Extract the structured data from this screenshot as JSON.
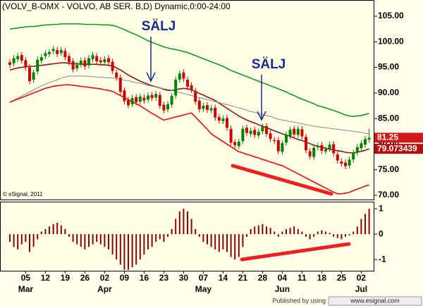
{
  "title": "(VOLV_B-OMX - VOLVO, AB SER. B,D) Dynamic,0:00-24:00",
  "copyright": "© eSignal, 2011",
  "footer": {
    "text": "Published by using",
    "site": "www.esignal.com"
  },
  "chart_data": [
    {
      "type": "candlestick",
      "categories": [
        null,
        null,
        null,
        null,
        "05",
        null,
        null,
        null,
        null,
        "12",
        null,
        null,
        null,
        null,
        "19",
        null,
        null,
        null,
        null,
        "26",
        null,
        null,
        null,
        null,
        "02",
        null,
        null,
        null,
        null,
        "09",
        null,
        null,
        null,
        null,
        "16",
        null,
        null,
        null,
        null,
        "23",
        null,
        null,
        null,
        null,
        "30",
        null,
        null,
        null,
        null,
        "07",
        null,
        null,
        null,
        null,
        "14",
        null,
        null,
        null,
        null,
        "21",
        null,
        null,
        null,
        null,
        "28",
        null,
        null,
        null,
        null,
        "04",
        null,
        null,
        null,
        null,
        "11",
        null,
        null,
        null,
        null,
        "18",
        null,
        null,
        null,
        null,
        "25",
        null,
        null,
        null,
        null,
        "02",
        null,
        null
      ],
      "month_categories": [
        null,
        null,
        null,
        null,
        "Mar",
        null,
        null,
        null,
        null,
        null,
        null,
        null,
        null,
        null,
        null,
        null,
        null,
        null,
        null,
        null,
        null,
        null,
        null,
        null,
        "Apr",
        null,
        null,
        null,
        null,
        null,
        null,
        null,
        null,
        null,
        null,
        null,
        null,
        null,
        null,
        null,
        null,
        null,
        null,
        null,
        null,
        null,
        null,
        null,
        null,
        "May",
        null,
        null,
        null,
        null,
        null,
        null,
        null,
        null,
        null,
        null,
        null,
        null,
        null,
        null,
        null,
        null,
        null,
        null,
        null,
        "Jun",
        null,
        null,
        null,
        null,
        null,
        null,
        null,
        null,
        null,
        null,
        null,
        null,
        null,
        null,
        null,
        null,
        null,
        null,
        null,
        "Jul",
        null,
        null
      ],
      "open": [
        96.0,
        95.8,
        96.6,
        97.4,
        96.4,
        95.0,
        92.6,
        94.2,
        96.3,
        97.2,
        97.6,
        98.2,
        98.4,
        97.8,
        98.2,
        97.2,
        96.2,
        94.8,
        95.6,
        96.4,
        95.4,
        96.6,
        97.2,
        96.4,
        96.0,
        96.8,
        96.1,
        94.0,
        93.0,
        90.5,
        88.6,
        87.8,
        89.2,
        88.3,
        89.1,
        88.7,
        89.6,
        89.1,
        89.6,
        87.7,
        86.8,
        87.7,
        89.5,
        92.6,
        94.0,
        92.6,
        91.5,
        90.4,
        88.5,
        86.9,
        87.6,
        86.6,
        87.1,
        85.3,
        84.5,
        85.1,
        83.0,
        80.4,
        79.6,
        80.6,
        83.2,
        82.0,
        82.8,
        81.7,
        82.5,
        83.5,
        82.1,
        80.8,
        80.8,
        78.5,
        80.3,
        81.6,
        83.0,
        81.8,
        82.9,
        81.4,
        78.6,
        77.5,
        79.4,
        79.8,
        78.6,
        79.1,
        80.0,
        78.0,
        76.6,
        76.4,
        75.8,
        77.0,
        78.4,
        79.2,
        79.9,
        80.9
      ],
      "high": [
        96.6,
        97.4,
        97.8,
        98.0,
        97.0,
        95.6,
        94.6,
        97.1,
        97.6,
        98.4,
        98.6,
        99.2,
        99.0,
        99.0,
        98.8,
        97.8,
        96.8,
        96.1,
        96.9,
        97.0,
        97.4,
        98.0,
        97.8,
        97.0,
        97.2,
        97.4,
        96.7,
        94.6,
        93.6,
        91.1,
        89.2,
        89.6,
        89.8,
        89.9,
        89.7,
        90.1,
        90.2,
        90.4,
        90.2,
        88.3,
        88.4,
        90.0,
        93.2,
        94.4,
        94.6,
        93.2,
        92.1,
        91.0,
        89.1,
        88.1,
        88.2,
        87.6,
        87.7,
        85.9,
        85.6,
        85.7,
        83.6,
        81.0,
        81.1,
        83.6,
        83.8,
        83.2,
        83.4,
        83.0,
        84.0,
        84.1,
        82.7,
        81.4,
        81.4,
        80.8,
        82.4,
        83.4,
        83.6,
        83.6,
        83.5,
        82.0,
        79.2,
        79.9,
        80.2,
        80.4,
        79.6,
        80.5,
        80.6,
        78.6,
        77.2,
        77.0,
        77.6,
        78.9,
        80.0,
        80.8,
        81.6,
        83.0
      ],
      "low": [
        94.9,
        95.2,
        96.0,
        95.7,
        94.4,
        91.7,
        92.0,
        93.6,
        95.7,
        96.6,
        97.0,
        97.6,
        97.0,
        97.2,
        96.4,
        95.4,
        94.0,
        94.2,
        95.0,
        94.6,
        94.8,
        96.0,
        95.6,
        95.4,
        95.4,
        95.4,
        93.7,
        92.4,
        89.6,
        87.8,
        87.0,
        87.2,
        87.6,
        87.7,
        87.9,
        88.1,
        88.4,
        88.5,
        86.9,
        86.0,
        86.2,
        87.1,
        88.9,
        92.0,
        92.2,
        90.6,
        90.0,
        87.7,
        86.2,
        86.3,
        86.1,
        86.0,
        84.6,
        84.0,
        83.9,
        82.6,
        79.7,
        79.2,
        79.0,
        80.0,
        81.6,
        81.4,
        81.2,
        81.1,
        81.9,
        81.4,
        80.4,
        80.0,
        78.0,
        77.9,
        79.7,
        81.0,
        81.3,
        81.2,
        80.9,
        78.2,
        77.0,
        76.9,
        78.8,
        78.1,
        78.0,
        78.5,
        77.6,
        76.2,
        75.6,
        75.1,
        75.2,
        76.4,
        77.8,
        78.6,
        79.3,
        80.3
      ],
      "close": [
        95.5,
        96.8,
        97.2,
        96.3,
        95.0,
        92.3,
        94.0,
        96.5,
        97.0,
        97.8,
        98.0,
        98.6,
        97.6,
        98.4,
        97.0,
        96.0,
        94.6,
        95.5,
        96.3,
        95.2,
        96.8,
        97.4,
        96.2,
        96.0,
        96.6,
        96.0,
        94.3,
        93.0,
        90.2,
        88.4,
        87.6,
        89.0,
        88.2,
        89.3,
        88.5,
        89.5,
        89.0,
        89.8,
        87.5,
        86.6,
        87.8,
        89.4,
        92.6,
        93.8,
        92.8,
        91.2,
        90.6,
        88.3,
        86.8,
        87.5,
        86.7,
        87.0,
        85.2,
        84.6,
        85.0,
        83.2,
        80.3,
        79.8,
        80.5,
        83.0,
        82.2,
        82.6,
        81.8,
        82.4,
        83.4,
        82.0,
        81.0,
        80.6,
        78.6,
        80.2,
        81.8,
        82.8,
        81.9,
        83.0,
        81.5,
        78.8,
        77.6,
        79.3,
        79.6,
        78.7,
        79.0,
        79.9,
        78.2,
        76.8,
        76.2,
        75.7,
        77.0,
        78.3,
        79.4,
        80.2,
        81.0,
        81.25
      ],
      "last_label": "81.25",
      "up_color": "#008000",
      "down_color": "#cc0000",
      "lines": [
        {
          "color": "#1a9a1a",
          "values": [
            102.5,
            102.6,
            102.7,
            102.8,
            102.9,
            103.0,
            103.0,
            103.1,
            103.2,
            103.3,
            103.3,
            103.4,
            103.4,
            103.5,
            103.5,
            103.5,
            103.5,
            103.5,
            103.5,
            103.4,
            103.4,
            103.4,
            103.4,
            103.3,
            103.3,
            103.3,
            103.2,
            103.0,
            102.7,
            102.4,
            102.0,
            101.7,
            101.4,
            101.0,
            100.6,
            100.2,
            99.9,
            99.6,
            99.3,
            99.0,
            98.8,
            98.6,
            98.5,
            98.3,
            98.1,
            97.9,
            97.6,
            97.3,
            97.0,
            96.7,
            96.4,
            96.1,
            95.8,
            95.5,
            95.2,
            94.8,
            94.4,
            94.1,
            93.8,
            93.5,
            93.2,
            92.9,
            92.6,
            92.3,
            92.0,
            91.7,
            91.4,
            91.1,
            90.8,
            90.5,
            90.2,
            89.8,
            89.5,
            89.1,
            88.8,
            88.5,
            88.2,
            87.9,
            87.5,
            87.3,
            87.1,
            86.8,
            86.6,
            86.3,
            86.0,
            85.7,
            85.5,
            85.4,
            85.5,
            85.6,
            85.8,
            86.0
          ]
        },
        {
          "color": "#8b1a10",
          "values": [
            94.5,
            94.7,
            94.9,
            95.0,
            95.1,
            95.2,
            95.2,
            95.3,
            95.4,
            95.5,
            95.6,
            95.7,
            95.8,
            95.9,
            95.9,
            95.8,
            95.7,
            95.7,
            95.6,
            95.6,
            95.6,
            95.6,
            95.6,
            95.5,
            95.5,
            95.4,
            95.3,
            94.9,
            94.5,
            94.0,
            93.5,
            93.1,
            92.7,
            92.3,
            92.0,
            91.7,
            91.4,
            91.2,
            91.0,
            90.7,
            90.5,
            90.5,
            90.6,
            90.8,
            90.9,
            90.8,
            90.6,
            90.3,
            89.9,
            89.6,
            89.2,
            88.9,
            88.5,
            88.0,
            87.5,
            87.0,
            86.5,
            86.0,
            85.5,
            85.1,
            84.7,
            84.4,
            84.1,
            83.8,
            83.5,
            83.2,
            82.9,
            82.6,
            82.3,
            82.0,
            81.8,
            81.5,
            81.2,
            80.9,
            80.7,
            80.4,
            80.1,
            79.8,
            79.6,
            79.4,
            79.2,
            79.0,
            78.9,
            78.7,
            78.6,
            78.4,
            78.3,
            78.3,
            78.4,
            78.6,
            78.8,
            79.073439
          ],
          "last_label": "79.073439"
        },
        {
          "color": "#888888",
          "values": [
            88.2,
            88.6,
            89.0,
            89.4,
            89.8,
            90.2,
            90.6,
            91.0,
            91.4,
            91.7,
            92.0,
            92.3,
            92.6,
            92.9,
            93.1,
            93.3,
            93.3,
            93.3,
            93.3,
            93.3,
            93.2,
            93.2,
            93.1,
            93.1,
            93.0,
            93.0,
            92.9,
            92.8,
            92.7,
            92.5,
            92.4,
            92.2,
            92.0,
            91.9,
            91.7,
            91.5,
            91.3,
            91.2,
            91.0,
            90.8,
            90.7,
            90.5,
            90.3,
            90.1,
            89.9,
            89.7,
            89.5,
            89.3,
            89.1,
            88.9,
            88.7,
            88.5,
            88.3,
            88.1,
            87.9,
            87.7,
            87.5,
            87.3,
            87.1,
            86.9,
            86.6,
            86.4,
            86.2,
            86.0,
            85.8,
            85.6,
            85.4,
            85.1,
            84.9,
            84.7,
            84.6,
            84.4,
            84.3,
            84.1,
            84.0,
            83.8,
            83.7,
            83.5,
            83.4,
            83.3,
            83.2,
            83.1,
            83.0,
            82.9,
            82.8,
            82.7,
            82.6,
            82.5,
            82.4,
            82.3,
            82.1,
            82.0
          ]
        },
        {
          "color": "#e01010",
          "values": [
            88.2,
            88.5,
            88.8,
            89.1,
            89.4,
            89.7,
            90.0,
            90.3,
            90.6,
            90.9,
            91.1,
            91.3,
            91.4,
            91.5,
            91.6,
            91.6,
            91.5,
            91.4,
            91.3,
            91.2,
            91.1,
            91.0,
            90.9,
            90.8,
            90.6,
            90.5,
            90.3,
            89.9,
            89.5,
            89.1,
            88.7,
            88.3,
            87.9,
            87.5,
            87.0,
            86.5,
            86.0,
            85.6,
            85.1,
            84.7,
            84.9,
            85.1,
            85.3,
            85.5,
            85.7,
            85.9,
            86.1,
            85.3,
            84.5,
            83.7,
            82.9,
            82.0,
            81.5,
            81.0,
            80.5,
            80.0,
            79.5,
            79.0,
            78.5,
            78.3,
            78.0,
            77.8,
            77.5,
            77.3,
            77.0,
            76.8,
            76.5,
            76.3,
            76.0,
            75.8,
            75.4,
            75.0,
            74.6,
            74.2,
            73.8,
            73.4,
            73.0,
            72.6,
            72.2,
            71.8,
            71.4,
            71.0,
            70.6,
            70.3,
            70.3,
            70.4,
            70.6,
            70.9,
            71.2,
            71.5,
            71.8,
            72.0
          ]
        }
      ],
      "annotations": [
        "SÄLJ",
        "SÄLJ"
      ],
      "ylim": [
        69.17,
        108.17
      ],
      "yticks": [
        {
          "value": 70,
          "label": "70.00"
        },
        {
          "value": 75,
          "label": "75.00"
        },
        {
          "value": 80,
          "label": "80.00"
        },
        {
          "value": 85,
          "label": "85.00"
        },
        {
          "value": 90,
          "label": "90.00"
        },
        {
          "value": 95,
          "label": "95.00"
        },
        {
          "value": 100,
          "label": "100.00"
        },
        {
          "value": 105,
          "label": "105.00"
        }
      ]
    },
    {
      "type": "bar",
      "color": "#8b0000",
      "values": [
        -0.3,
        -0.5,
        -0.6,
        -0.4,
        -0.3,
        -0.7,
        -0.5,
        -0.2,
        0.1,
        0.2,
        0.3,
        0.4,
        0.45,
        0.35,
        0.2,
        -0.1,
        -0.3,
        -0.4,
        -0.5,
        -0.6,
        -0.5,
        -0.4,
        -0.3,
        -0.4,
        -0.5,
        -0.6,
        -0.8,
        -1.0,
        -1.2,
        -1.4,
        -1.4,
        -1.3,
        -1.2,
        -1.0,
        -0.8,
        -0.6,
        -0.5,
        -0.3,
        -0.2,
        -0.3,
        -0.1,
        0.2,
        0.6,
        0.9,
        1.0,
        0.9,
        0.6,
        0.2,
        -0.1,
        -0.3,
        -0.4,
        -0.5,
        -0.6,
        -0.7,
        -0.6,
        -0.7,
        -0.9,
        -1.0,
        -0.9,
        -0.5,
        -0.1,
        0.2,
        0.3,
        0.35,
        0.4,
        0.3,
        0.25,
        0.1,
        -0.1,
        0.1,
        0.2,
        0.25,
        0.3,
        0.2,
        0.1,
        -0.1,
        -0.2,
        -0.1,
        0.1,
        0.15,
        0.1,
        0.05,
        -0.1,
        -0.15,
        -0.2,
        -0.1,
        -0.05,
        0.1,
        0.3,
        0.6,
        0.8,
        1.0
      ],
      "ylim": [
        -1.44,
        1.28
      ],
      "yticks": [
        -1,
        0,
        1
      ]
    }
  ]
}
